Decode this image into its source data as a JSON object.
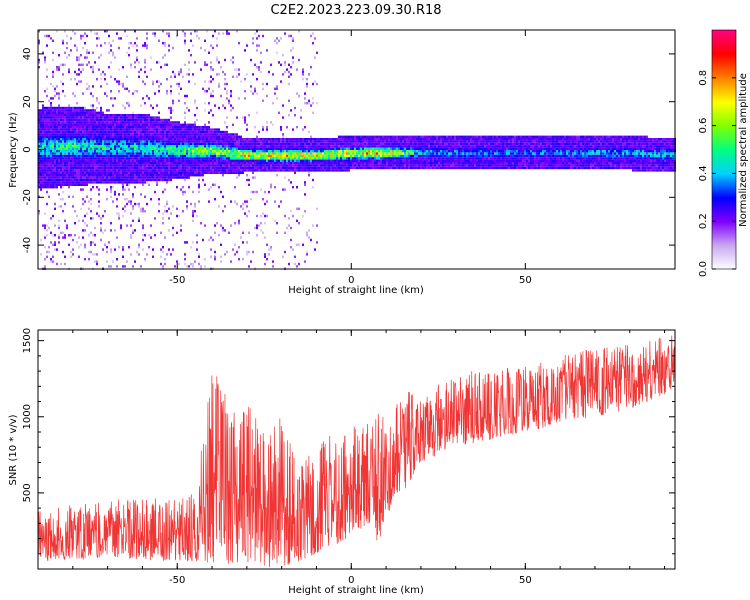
{
  "figure": {
    "title": "C2E2.2023.223.09.30.R18"
  },
  "chart_data": [
    {
      "type": "heatmap",
      "xlabel": "Height of straight line (km)",
      "ylabel": "Frequency (Hz)",
      "xlim": [
        -90,
        93
      ],
      "ylim": [
        -50,
        50
      ],
      "xticks": [
        -50,
        0,
        50
      ],
      "yticks": [
        -40,
        -20,
        0,
        20,
        40
      ],
      "colorbar": {
        "label": "Normalized spectral amplitude",
        "range": [
          0.0,
          1.0
        ],
        "ticks": [
          "0.0",
          "0.2",
          "0.4",
          "0.6",
          "0.8"
        ],
        "colormap": [
          "#ffffff",
          "#c8a8f0",
          "#8000ff",
          "#0000ff",
          "#00d0ff",
          "#00ff80",
          "#80ff00",
          "#ffff00",
          "#ff8000",
          "#ff0000",
          "#ff0080"
        ]
      },
      "ridge": {
        "x": [
          -90,
          -80,
          -70,
          -60,
          -50,
          -40,
          -30,
          -20,
          -10,
          0,
          5,
          10,
          20,
          30,
          40,
          50,
          60,
          70,
          80,
          93
        ],
        "center_freq": [
          1,
          2,
          1,
          1,
          0,
          0,
          -2,
          -2,
          -2,
          -1,
          -1,
          -1,
          -1,
          -1,
          -1,
          -1,
          -1,
          -1,
          -1,
          -2
        ],
        "peak_amplitude": [
          0.55,
          0.6,
          0.55,
          0.55,
          0.6,
          0.75,
          0.85,
          0.9,
          0.85,
          0.85,
          0.95,
          0.9,
          0.5,
          0.45,
          0.45,
          0.45,
          0.45,
          0.5,
          0.5,
          0.55
        ],
        "half_width": [
          7,
          7,
          6,
          6,
          5,
          4,
          3,
          3,
          3,
          3,
          3,
          3,
          3,
          3,
          3,
          3,
          3,
          3,
          3,
          3
        ]
      }
    },
    {
      "type": "line",
      "xlabel": "Height of straight line (km)",
      "ylabel": "SNR (10 * v/v)",
      "xlim": [
        -90,
        93
      ],
      "ylim": [
        0,
        1570
      ],
      "xticks": [
        -50,
        0,
        50
      ],
      "yticks": [
        500,
        1000,
        1500
      ],
      "series": [
        {
          "color": "#f03535",
          "envelope_x": [
            -90,
            -80,
            -70,
            -60,
            -50,
            -45,
            -40,
            -35,
            -30,
            -25,
            -20,
            -15,
            -10,
            -5,
            0,
            5,
            8,
            10,
            15,
            20,
            30,
            40,
            50,
            60,
            70,
            80,
            90,
            93
          ],
          "envelope_low": [
            50,
            60,
            80,
            60,
            50,
            50,
            40,
            30,
            20,
            10,
            10,
            50,
            100,
            150,
            220,
            300,
            150,
            350,
            500,
            700,
            800,
            850,
            900,
            950,
            1000,
            1050,
            1150,
            1200
          ],
          "envelope_high": [
            380,
            420,
            450,
            480,
            450,
            520,
            1300,
            1250,
            1100,
            900,
            1000,
            700,
            800,
            900,
            950,
            1000,
            1050,
            1000,
            1150,
            1200,
            1300,
            1300,
            1350,
            1400,
            1450,
            1480,
            1520,
            1550
          ]
        }
      ]
    }
  ]
}
